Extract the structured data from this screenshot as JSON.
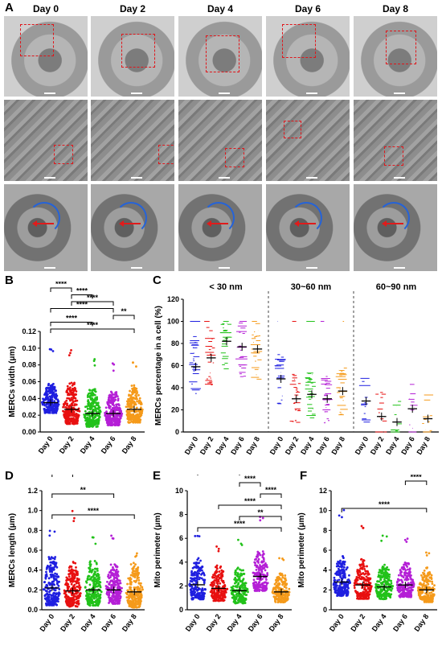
{
  "panels": {
    "A": "A",
    "B": "B",
    "C": "C",
    "D": "D",
    "E": "E",
    "F": "F"
  },
  "days": [
    "Day 0",
    "Day 2",
    "Day 4",
    "Day 6",
    "Day 8"
  ],
  "colors": {
    "day0": "#1f1fe0",
    "day2": "#e81010",
    "day4": "#22c21a",
    "day6": "#b41fd6",
    "day8": "#f59a1a"
  },
  "chart_data": [
    {
      "panel": "B",
      "type": "scatter",
      "ylabel": "MERCs width (μm)",
      "categories": [
        "Day 0",
        "Day 2",
        "Day 4",
        "Day 6",
        "Day 8"
      ],
      "ylim": [
        0.0,
        0.12
      ],
      "yticks": [
        "0.00",
        "0.02",
        "0.04",
        "0.06",
        "0.08",
        "0.10",
        "0.12"
      ],
      "means": [
        0.035,
        0.027,
        0.022,
        0.022,
        0.027
      ],
      "spread": [
        0.035,
        0.05,
        0.045,
        0.04,
        0.045
      ],
      "max": [
        0.1,
        0.1,
        0.088,
        0.082,
        0.088
      ],
      "significance": [
        {
          "from": 0,
          "to": 1,
          "label": "****"
        },
        {
          "from": 1,
          "to": 2,
          "label": "****"
        },
        {
          "from": 1,
          "to": 3,
          "label": "****"
        },
        {
          "from": 0,
          "to": 3,
          "label": "****"
        },
        {
          "from": 3,
          "to": 4,
          "label": "**"
        },
        {
          "from": 0,
          "to": 2,
          "label": "****"
        },
        {
          "from": 0,
          "to": 4,
          "label": "****"
        }
      ]
    },
    {
      "panel": "C",
      "type": "scatter",
      "ylabel": "MERCs percentage in a cell (%)",
      "ylim": [
        0,
        120
      ],
      "yticks": [
        "0",
        "20",
        "40",
        "60",
        "80",
        "100",
        "120"
      ],
      "groups": [
        {
          "title": "< 30 nm",
          "categories": [
            "Day 0",
            "Day 2",
            "Day 4",
            "Day 6",
            "Day 8"
          ],
          "means": [
            59,
            67,
            82,
            77,
            75
          ]
        },
        {
          "title": "30~60 nm",
          "categories": [
            "Day 0",
            "Day 2",
            "Day 4",
            "Day 6",
            "Day 8"
          ],
          "means": [
            48,
            30,
            34,
            30,
            37
          ]
        },
        {
          "title": "60~90 nm",
          "categories": [
            "Day 0",
            "Day 2",
            "Day 4",
            "Day 6",
            "Day 8"
          ],
          "means": [
            28,
            14,
            9,
            21,
            12
          ]
        }
      ]
    },
    {
      "panel": "D",
      "type": "scatter",
      "ylabel": "MERCs length (μm)",
      "categories": [
        "Day 0",
        "Day 2",
        "Day 4",
        "Day 6",
        "Day 8"
      ],
      "ylim": [
        0.0,
        1.2
      ],
      "yticks": [
        "0.0",
        "0.2",
        "0.4",
        "0.6",
        "0.8",
        "1.0",
        "1.2"
      ],
      "means": [
        0.22,
        0.19,
        0.2,
        0.2,
        0.18
      ],
      "spread": [
        0.5,
        0.45,
        0.45,
        0.4,
        0.45
      ],
      "max": [
        0.8,
        1.0,
        0.75,
        0.8,
        0.6
      ],
      "significance": [
        {
          "from": 0,
          "to": 1,
          "label": "****"
        },
        {
          "from": 0,
          "to": 3,
          "label": "**"
        },
        {
          "from": 0,
          "to": 4,
          "label": "****"
        }
      ]
    },
    {
      "panel": "E",
      "type": "scatter",
      "ylabel": "Mito perimeter (μm)",
      "categories": [
        "Day 0",
        "Day 2",
        "Day 4",
        "Day 6",
        "Day 8"
      ],
      "ylim": [
        0,
        10
      ],
      "yticks": [
        "0",
        "2",
        "4",
        "6",
        "8",
        "10"
      ],
      "means": [
        2.1,
        1.8,
        1.6,
        2.8,
        1.5
      ],
      "spread": [
        3.5,
        3,
        3,
        3.5,
        2.5
      ],
      "max": [
        7,
        5.5,
        6,
        8.5,
        4.5
      ],
      "significance": [
        {
          "from": 0,
          "to": 2,
          "label": "****"
        },
        {
          "from": 2,
          "to": 3,
          "label": "****"
        },
        {
          "from": 3,
          "to": 4,
          "label": "****"
        },
        {
          "from": 1,
          "to": 4,
          "label": "****"
        },
        {
          "from": 2,
          "to": 4,
          "label": "**"
        },
        {
          "from": 0,
          "to": 4,
          "label": "****"
        }
      ]
    },
    {
      "panel": "F",
      "type": "scatter",
      "ylabel": "Mito perimeter (μm)",
      "categories": [
        "Day 0",
        "Day 2",
        "Day 4",
        "Day 6",
        "Day 8"
      ],
      "ylim": [
        0,
        12
      ],
      "yticks": [
        "0",
        "2",
        "4",
        "6",
        "8",
        "10",
        "12"
      ],
      "means": [
        2.8,
        2.5,
        2.3,
        2.5,
        2.0
      ],
      "spread": [
        4,
        4,
        3.5,
        3.5,
        3.5
      ],
      "max": [
        10.5,
        9,
        7.5,
        7.5,
        6
      ],
      "significance": [
        {
          "from": 3,
          "to": 4,
          "label": "****"
        },
        {
          "from": 0,
          "to": 4,
          "label": "****"
        }
      ]
    }
  ]
}
